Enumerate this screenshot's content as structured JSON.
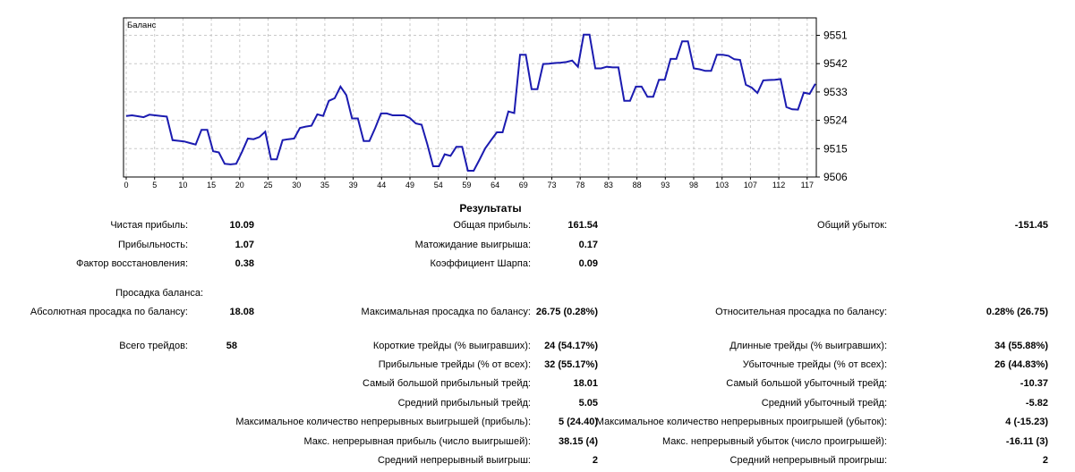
{
  "chart_data": {
    "type": "line",
    "title": "Баланс",
    "xlabel": "",
    "ylabel": "",
    "grid": "dashed",
    "legend_position": "top-left-inside",
    "x_tick_labels": [
      "0",
      "5",
      "10",
      "15",
      "20",
      "25",
      "30",
      "35",
      "39",
      "44",
      "49",
      "54",
      "59",
      "64",
      "69",
      "73",
      "78",
      "83",
      "88",
      "93",
      "98",
      "103",
      "107",
      "112",
      "117"
    ],
    "y_tick_values": [
      9551,
      9542,
      9533,
      9524,
      9515,
      9506
    ],
    "ylim": [
      9506,
      9556
    ],
    "xlim": [
      0,
      119
    ],
    "series": [
      {
        "name": "Баланс",
        "color": "#1B1BB0",
        "values": [
          9525.4,
          9525.6,
          9525.3,
          9525.0,
          9525.8,
          9525.6,
          9525.4,
          9525.2,
          9517.7,
          9517.5,
          9517.3,
          9516.8,
          9516.3,
          9521.0,
          9521.0,
          9514.2,
          9513.8,
          9510.2,
          9510.0,
          9510.2,
          9514.0,
          9518.2,
          9518.0,
          9518.7,
          9520.4,
          9511.6,
          9511.6,
          9517.7,
          9518.0,
          9518.2,
          9521.6,
          9522.0,
          9522.3,
          9525.9,
          9525.4,
          9530.2,
          9531.0,
          9534.7,
          9532.0,
          9524.6,
          9524.6,
          9517.4,
          9517.4,
          9521.6,
          9526.2,
          9526.2,
          9525.6,
          9525.6,
          9525.6,
          9524.7,
          9523.0,
          9522.6,
          9516.4,
          9509.4,
          9509.4,
          9513.2,
          9512.7,
          9515.6,
          9515.6,
          9508.0,
          9508.0,
          9511.5,
          9515.1,
          9517.7,
          9520.2,
          9520.2,
          9526.8,
          9526.3,
          9544.8,
          9544.8,
          9533.9,
          9533.9,
          9541.9,
          9542.0,
          9542.2,
          9542.3,
          9542.5,
          9543.0,
          9541.0,
          9551.2,
          9551.2,
          9540.5,
          9540.5,
          9541.0,
          9540.8,
          9540.8,
          9530.2,
          9530.2,
          9534.7,
          9534.7,
          9531.5,
          9531.5,
          9536.9,
          9536.9,
          9543.5,
          9543.5,
          9549.1,
          9549.1,
          9540.5,
          9540.2,
          9539.7,
          9539.7,
          9544.8,
          9544.8,
          9544.5,
          9543.4,
          9543.2,
          9535.3,
          9534.4,
          9532.7,
          9536.7,
          9536.8,
          9536.9,
          9537.1,
          9528.2,
          9527.5,
          9527.4,
          9532.8,
          9532.4,
          9535.6
        ]
      }
    ]
  },
  "results": {
    "title": "Результаты",
    "rows": [
      {
        "cells": [
          {
            "col": "left",
            "label": "Чистая прибыль:",
            "value": "10.09"
          },
          {
            "col": "mid",
            "label": "Общая прибыль:",
            "value": "161.54"
          },
          {
            "col": "right",
            "label": "Общий убыток:",
            "value": "-151.45"
          }
        ]
      },
      {
        "cells": [
          {
            "col": "left",
            "label": "Прибыльность:",
            "value": "1.07"
          },
          {
            "col": "mid",
            "label": "Матожидание выигрыша:",
            "value": "0.17"
          }
        ]
      },
      {
        "cells": [
          {
            "col": "left",
            "label": "Фактор восстановления:",
            "value": "0.38"
          },
          {
            "col": "mid",
            "label": "Коэффициент Шарпа:",
            "value": "0.09"
          }
        ]
      },
      {
        "cells": [
          {
            "col": "solo",
            "label": "Просадка баланса:",
            "value": ""
          }
        ]
      },
      {
        "cells": [
          {
            "col": "left",
            "label": "Абсолютная просадка по балансу:",
            "value": "18.08"
          },
          {
            "col": "mid",
            "label": "Максимальная просадка по балансу:",
            "value": "26.75 (0.28%)"
          },
          {
            "col": "right",
            "label": "Относительная просадка по балансу:",
            "value": "0.28% (26.75)"
          }
        ]
      },
      {
        "cells": [
          {
            "col": "left-narrow",
            "label": "Всего трейдов:",
            "value": "58"
          },
          {
            "col": "mid",
            "label": "Короткие трейды (% выигравших):",
            "value": "24 (54.17%)"
          },
          {
            "col": "right",
            "label": "Длинные трейды (% выигравших):",
            "value": "34 (55.88%)"
          }
        ]
      },
      {
        "cells": [
          {
            "col": "mid",
            "label": "Прибыльные трейды (% от всех):",
            "value": "32 (55.17%)"
          },
          {
            "col": "right",
            "label": "Убыточные трейды (% от всех):",
            "value": "26 (44.83%)"
          }
        ]
      },
      {
        "cells": [
          {
            "col": "mid",
            "label": "Самый большой прибыльный трейд:",
            "value": "18.01"
          },
          {
            "col": "right",
            "label": "Самый большой убыточный трейд:",
            "value": "-10.37"
          }
        ]
      },
      {
        "cells": [
          {
            "col": "mid",
            "label": "Средний прибыльный трейд:",
            "value": "5.05"
          },
          {
            "col": "right",
            "label": "Средний убыточный трейд:",
            "value": "-5.82"
          }
        ]
      },
      {
        "cells": [
          {
            "col": "mid",
            "label": "Максимальное количество непрерывных выигрышей (прибыль):",
            "value": "5 (24.40)"
          },
          {
            "col": "right",
            "label": "Максимальное количество непрерывных проигрышей (убыток):",
            "value": "4 (-15.23)"
          }
        ]
      },
      {
        "cells": [
          {
            "col": "mid",
            "label": "Макс. непрерывная прибыль (число выигрышей):",
            "value": "38.15 (4)"
          },
          {
            "col": "right",
            "label": "Макс. непрерывный убыток (число проигрышей):",
            "value": "-16.11 (3)"
          }
        ]
      },
      {
        "cells": [
          {
            "col": "mid",
            "label": "Средний непрерывный выигрыш:",
            "value": "2"
          },
          {
            "col": "right",
            "label": "Средний непрерывный проигрыш:",
            "value": "2"
          }
        ]
      }
    ]
  }
}
